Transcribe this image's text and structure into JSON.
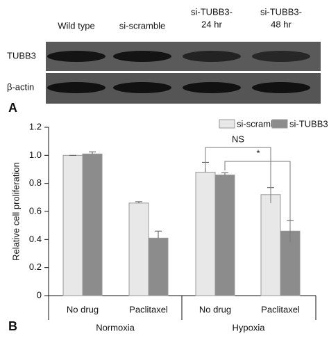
{
  "blot": {
    "panel_label": "A",
    "lanes": [
      [
        "Wild type"
      ],
      [
        "si-scramble"
      ],
      [
        "si-TUBB3-",
        "24 hr"
      ],
      [
        "si-TUBB3-",
        "48 hr"
      ]
    ],
    "rows": [
      "TUBB3",
      "β-actin"
    ]
  },
  "chart_data": {
    "type": "bar",
    "panel_label": "B",
    "y_label": "Relative cell proliferation",
    "categories": [
      "No drug",
      "Paclitaxel",
      "No drug",
      "Paclitaxel"
    ],
    "groups": [
      "Normoxia",
      "Hypoxia"
    ],
    "series": [
      {
        "name": "si-scramble",
        "color": "#e8e8e8",
        "values": [
          1.0,
          0.66,
          0.88,
          0.72
        ],
        "errors": [
          0.0,
          0.01,
          0.07,
          0.05
        ]
      },
      {
        "name": "si-TUBB3",
        "color": "#8c8c8c",
        "values": [
          1.01,
          0.41,
          0.86,
          0.46
        ],
        "errors": [
          0.015,
          0.05,
          0.015,
          0.075
        ]
      }
    ],
    "annotations": [
      "NS",
      "*"
    ],
    "ylim": [
      0,
      1.2
    ],
    "yticks": [
      0,
      0.2,
      0.4,
      0.6,
      0.8,
      {
        "value": 1,
        "label": "1.0"
      },
      1.2
    ],
    "legend": "top-right"
  }
}
